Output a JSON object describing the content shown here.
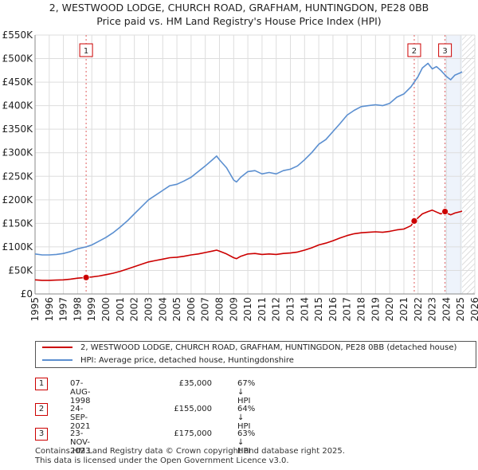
{
  "header": {
    "line1": "2, WESTWOOD LODGE, CHURCH ROAD, GRAFHAM, HUNTINGDON, PE28 0BB",
    "line2": "Price paid vs. HM Land Registry's House Price Index (HPI)"
  },
  "colors": {
    "red": "#cc0000",
    "blue": "#5b8fd0",
    "grid": "#dddddd",
    "shade": "#eef3fb"
  },
  "chart_data": {
    "type": "line",
    "title": "Price paid vs. HM Land Registry's House Price Index (HPI)",
    "xlim": [
      1995,
      2026
    ],
    "ylim": [
      0,
      550000
    ],
    "y_ticks": [
      0,
      50000,
      100000,
      150000,
      200000,
      250000,
      300000,
      350000,
      400000,
      450000,
      500000,
      550000
    ],
    "y_tick_labels": [
      "£0",
      "£50K",
      "£100K",
      "£150K",
      "£200K",
      "£250K",
      "£300K",
      "£350K",
      "£400K",
      "£450K",
      "£500K",
      "£550K"
    ],
    "x_ticks": [
      1995,
      1996,
      1997,
      1998,
      1999,
      2000,
      2001,
      2002,
      2003,
      2004,
      2005,
      2006,
      2007,
      2008,
      2009,
      2010,
      2011,
      2012,
      2013,
      2014,
      2015,
      2016,
      2017,
      2018,
      2019,
      2020,
      2021,
      2022,
      2023,
      2024,
      2025,
      2026
    ],
    "x_tick_labels": [
      "1995",
      "1996",
      "1997",
      "1998",
      "1999",
      "2000",
      "2001",
      "2002",
      "2003",
      "2004",
      "2005",
      "2006",
      "2007",
      "2008",
      "2009",
      "2010",
      "2011",
      "2012",
      "2013",
      "2014",
      "2015",
      "2016",
      "2017",
      "2018",
      "2019",
      "2020",
      "2021",
      "2022",
      "2023",
      "2024",
      "2025",
      "2026"
    ],
    "hatch_from": 2025.1,
    "series": [
      {
        "name": "HPI: Average price, detached house, Huntingdonshire",
        "color": "#5b8fd0",
        "x": [
          1995,
          1995.5,
          1996,
          1996.5,
          1997,
          1997.5,
          1998,
          1998.6,
          1999,
          1999.5,
          2000,
          2000.5,
          2001,
          2001.5,
          2002,
          2002.5,
          2003,
          2003.5,
          2004,
          2004.5,
          2005,
          2005.5,
          2006,
          2006.5,
          2007,
          2007.5,
          2007.8,
          2008,
          2008.5,
          2009,
          2009.2,
          2009.5,
          2010,
          2010.5,
          2011,
          2011.5,
          2012,
          2012.5,
          2013,
          2013.5,
          2014,
          2014.5,
          2015,
          2015.5,
          2016,
          2016.5,
          2017,
          2017.5,
          2018,
          2018.5,
          2019,
          2019.5,
          2020,
          2020.5,
          2021,
          2021.5,
          2022,
          2022.3,
          2022.7,
          2023,
          2023.3,
          2023.6,
          2024,
          2024.3,
          2024.6,
          2025,
          2025.1
        ],
        "y": [
          85000,
          83000,
          83000,
          84000,
          86000,
          90000,
          96000,
          100000,
          104000,
          112000,
          120000,
          130000,
          142000,
          155000,
          170000,
          185000,
          200000,
          210000,
          220000,
          230000,
          233000,
          240000,
          248000,
          260000,
          272000,
          285000,
          293000,
          285000,
          268000,
          242000,
          238000,
          248000,
          260000,
          262000,
          255000,
          258000,
          255000,
          262000,
          265000,
          272000,
          285000,
          300000,
          318000,
          328000,
          345000,
          362000,
          380000,
          390000,
          398000,
          400000,
          402000,
          400000,
          405000,
          418000,
          425000,
          440000,
          462000,
          480000,
          490000,
          478000,
          483000,
          475000,
          462000,
          455000,
          465000,
          470000,
          472000
        ]
      },
      {
        "name": "2, WESTWOOD LODGE, CHURCH ROAD, GRAFHAM, HUNTINGDON, PE28 0BB (detached house)",
        "color": "#cc0000",
        "x": [
          1995,
          1995.5,
          1996,
          1996.5,
          1997,
          1997.5,
          1998,
          1998.6,
          1999,
          1999.5,
          2000,
          2000.5,
          2001,
          2001.5,
          2002,
          2002.5,
          2003,
          2003.5,
          2004,
          2004.5,
          2005,
          2005.5,
          2006,
          2006.5,
          2007,
          2007.5,
          2007.8,
          2008,
          2008.5,
          2009,
          2009.2,
          2009.5,
          2010,
          2010.5,
          2011,
          2011.5,
          2012,
          2012.5,
          2013,
          2013.5,
          2014,
          2014.5,
          2015,
          2015.5,
          2016,
          2016.5,
          2017,
          2017.5,
          2018,
          2018.5,
          2019,
          2019.5,
          2020,
          2020.5,
          2021,
          2021.5,
          2021.73,
          2022,
          2022.3,
          2022.7,
          2023,
          2023.3,
          2023.6,
          2023.9,
          2024,
          2024.3,
          2024.6,
          2025,
          2025.1
        ],
        "y": [
          30000,
          29000,
          29000,
          29500,
          30000,
          31500,
          33500,
          35000,
          36000,
          38000,
          41000,
          44000,
          48000,
          53000,
          58000,
          63000,
          68000,
          71000,
          74000,
          77000,
          78000,
          80000,
          83000,
          85000,
          88000,
          91000,
          93000,
          91000,
          85000,
          77000,
          75000,
          80000,
          85000,
          86000,
          84000,
          85000,
          84000,
          86000,
          87000,
          89000,
          93000,
          98000,
          104000,
          108000,
          113000,
          119000,
          124000,
          128000,
          130000,
          131000,
          132000,
          131000,
          133000,
          136000,
          138000,
          145000,
          155000,
          162000,
          170000,
          175000,
          178000,
          174000,
          170000,
          175000,
          172000,
          168000,
          172000,
          175000,
          176000
        ]
      }
    ],
    "sales": [
      {
        "label": "1",
        "x": 1998.6,
        "price": 35000,
        "date": "07-AUG-1998",
        "price_label": "£35,000",
        "hpi_label": "67% ↓ HPI"
      },
      {
        "label": "2",
        "x": 2021.73,
        "price": 155000,
        "date": "24-SEP-2021",
        "price_label": "£155,000",
        "hpi_label": "64% ↓ HPI"
      },
      {
        "label": "3",
        "x": 2023.9,
        "price": 175000,
        "date": "23-NOV-2023",
        "price_label": "£175,000",
        "hpi_label": "63% ↓ HPI"
      }
    ]
  },
  "legend": {
    "red_label": "2, WESTWOOD LODGE, CHURCH ROAD, GRAFHAM, HUNTINGDON, PE28 0BB (detached house)",
    "blue_label": "HPI: Average price, detached house, Huntingdonshire"
  },
  "table": [
    {
      "num": "1",
      "date": "07-AUG-1998",
      "price": "£35,000",
      "pct": "67% ↓ HPI"
    },
    {
      "num": "2",
      "date": "24-SEP-2021",
      "price": "£155,000",
      "pct": "64% ↓ HPI"
    },
    {
      "num": "3",
      "date": "23-NOV-2023",
      "price": "£175,000",
      "pct": "63% ↓ HPI"
    }
  ],
  "footer": {
    "line1": "Contains HM Land Registry data © Crown copyright and database right 2025.",
    "line2": "This data is licensed under the Open Government Licence v3.0."
  }
}
